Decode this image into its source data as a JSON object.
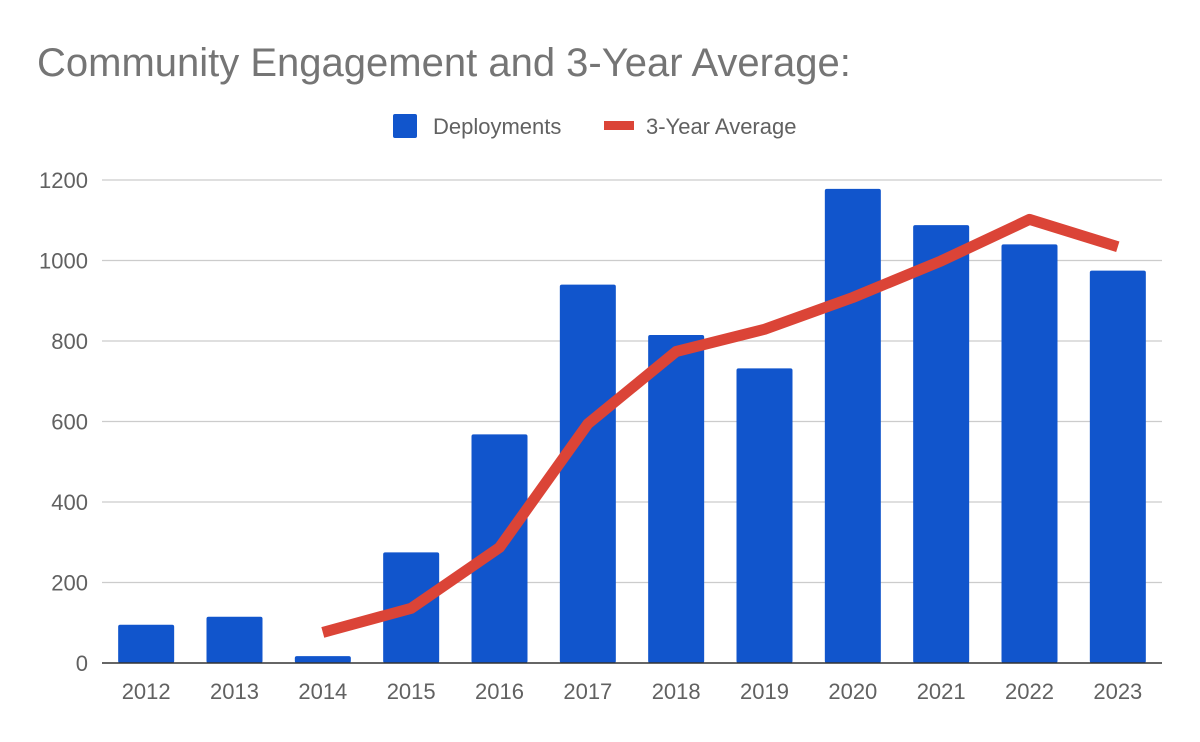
{
  "chart_data": {
    "type": "bar",
    "title": "Community Engagement and 3-Year Average:",
    "categories": [
      "2012",
      "2013",
      "2014",
      "2015",
      "2016",
      "2017",
      "2018",
      "2019",
      "2020",
      "2021",
      "2022",
      "2023"
    ],
    "series": [
      {
        "name": "Deployments",
        "type": "bar",
        "color": "#1155cc",
        "values": [
          95,
          115,
          17,
          275,
          568,
          940,
          815,
          732,
          1178,
          1088,
          1040,
          975
        ]
      },
      {
        "name": "3-Year Average",
        "type": "line",
        "color": "#db4437",
        "values": [
          null,
          null,
          76,
          136,
          287,
          594,
          774,
          829,
          908,
          999,
          1102,
          1034
        ]
      }
    ],
    "ylim": [
      0,
      1200
    ],
    "yticks": [
      0,
      200,
      400,
      600,
      800,
      1000,
      1200
    ],
    "xlabel": "",
    "ylabel": "",
    "grid": true,
    "legend_position": "top"
  }
}
